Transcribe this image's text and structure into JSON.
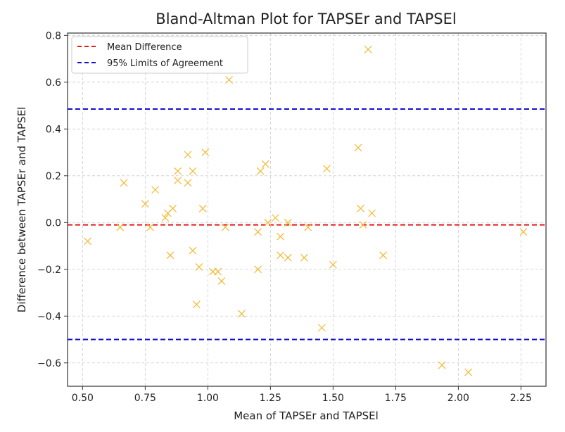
{
  "chart_data": {
    "type": "scatter",
    "title": "Bland-Altman Plot for TAPSEr and TAPSEl",
    "xlabel": "Mean of TAPSEr and TAPSEl",
    "ylabel": "Difference between TAPSEr and TAPSEl",
    "xlim": [
      0.44,
      2.35
    ],
    "ylim": [
      -0.7,
      0.81
    ],
    "xticks": [
      "0.50",
      "0.75",
      "1.00",
      "1.25",
      "1.50",
      "1.75",
      "2.00",
      "2.25"
    ],
    "yticks": [
      "−0.6",
      "−0.4",
      "−0.2",
      "0.0",
      "0.2",
      "0.4",
      "0.6",
      "0.8"
    ],
    "grid": true,
    "legend_position": "top-left",
    "marker": "x",
    "colors": {
      "points": "#f5b82e",
      "mean_line": "#e31a1c",
      "limits_line": "#1010d0",
      "grid": "#cccccc"
    },
    "mean_difference": -0.01,
    "limits_of_agreement": [
      0.485,
      -0.5
    ],
    "legend": [
      {
        "label": "Mean Difference",
        "color": "#e31a1c"
      },
      {
        "label": "95% Limits of Agreement",
        "color": "#1010d0"
      }
    ],
    "points": [
      {
        "x": 0.52,
        "y": -0.08
      },
      {
        "x": 0.65,
        "y": -0.02
      },
      {
        "x": 0.665,
        "y": 0.17
      },
      {
        "x": 0.75,
        "y": 0.08
      },
      {
        "x": 0.77,
        "y": -0.02
      },
      {
        "x": 0.79,
        "y": 0.14
      },
      {
        "x": 0.83,
        "y": 0.02
      },
      {
        "x": 0.84,
        "y": 0.04
      },
      {
        "x": 0.85,
        "y": -0.14
      },
      {
        "x": 0.86,
        "y": 0.06
      },
      {
        "x": 0.88,
        "y": 0.22
      },
      {
        "x": 0.88,
        "y": 0.18
      },
      {
        "x": 0.92,
        "y": 0.29
      },
      {
        "x": 0.92,
        "y": 0.17
      },
      {
        "x": 0.94,
        "y": 0.22
      },
      {
        "x": 0.94,
        "y": -0.12
      },
      {
        "x": 0.955,
        "y": -0.35
      },
      {
        "x": 0.965,
        "y": -0.19
      },
      {
        "x": 0.98,
        "y": 0.06
      },
      {
        "x": 0.99,
        "y": 0.3
      },
      {
        "x": 1.02,
        "y": -0.21
      },
      {
        "x": 1.04,
        "y": -0.21
      },
      {
        "x": 1.055,
        "y": -0.25
      },
      {
        "x": 1.07,
        "y": -0.02
      },
      {
        "x": 1.085,
        "y": 0.61
      },
      {
        "x": 1.135,
        "y": -0.39
      },
      {
        "x": 1.2,
        "y": -0.04
      },
      {
        "x": 1.2,
        "y": -0.2
      },
      {
        "x": 1.21,
        "y": 0.22
      },
      {
        "x": 1.23,
        "y": 0.25
      },
      {
        "x": 1.24,
        "y": 0.0
      },
      {
        "x": 1.27,
        "y": 0.02
      },
      {
        "x": 1.29,
        "y": -0.06
      },
      {
        "x": 1.29,
        "y": -0.14
      },
      {
        "x": 1.32,
        "y": -0.15
      },
      {
        "x": 1.32,
        "y": 0.0
      },
      {
        "x": 1.385,
        "y": -0.15
      },
      {
        "x": 1.4,
        "y": -0.02
      },
      {
        "x": 1.455,
        "y": -0.45
      },
      {
        "x": 1.475,
        "y": 0.23
      },
      {
        "x": 1.5,
        "y": -0.18
      },
      {
        "x": 1.6,
        "y": 0.32
      },
      {
        "x": 1.61,
        "y": 0.06
      },
      {
        "x": 1.62,
        "y": -0.01
      },
      {
        "x": 1.64,
        "y": 0.74
      },
      {
        "x": 1.655,
        "y": 0.04
      },
      {
        "x": 1.7,
        "y": -0.14
      },
      {
        "x": 1.935,
        "y": -0.61
      },
      {
        "x": 2.04,
        "y": -0.64
      },
      {
        "x": 2.26,
        "y": -0.04
      }
    ]
  }
}
